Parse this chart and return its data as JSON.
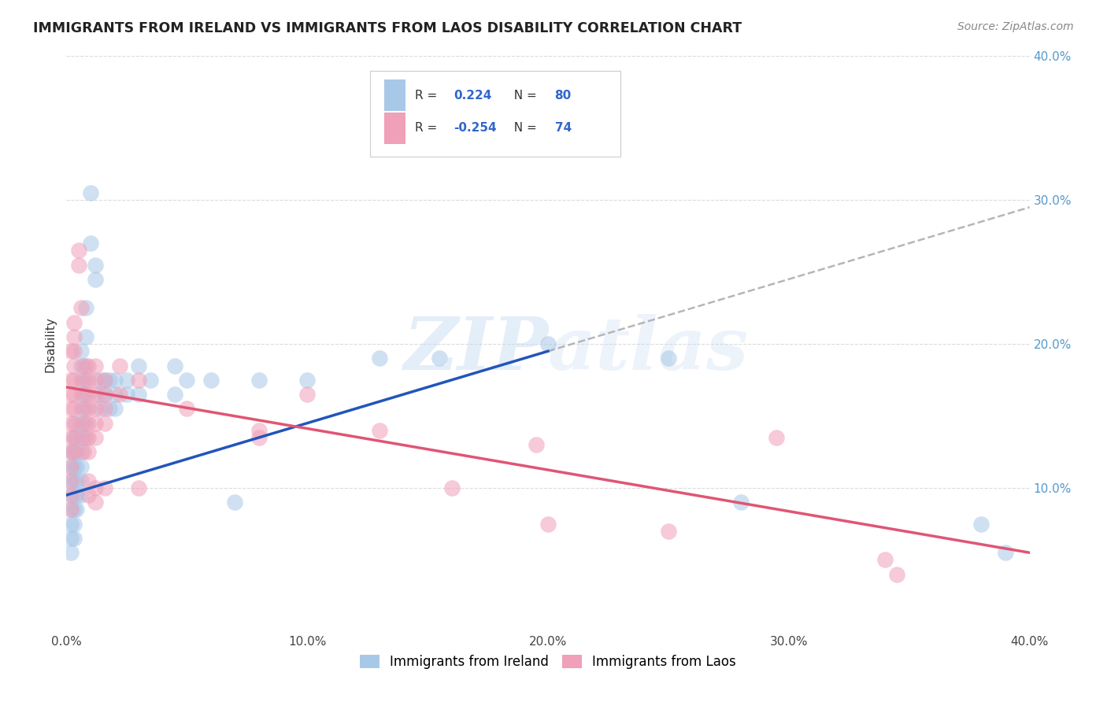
{
  "title": "IMMIGRANTS FROM IRELAND VS IMMIGRANTS FROM LAOS DISABILITY CORRELATION CHART",
  "source": "Source: ZipAtlas.com",
  "ylabel": "Disability",
  "xlim": [
    0.0,
    0.4
  ],
  "ylim": [
    0.0,
    0.4
  ],
  "xticks": [
    0.0,
    0.1,
    0.2,
    0.3,
    0.4
  ],
  "yticks": [
    0.1,
    0.2,
    0.3,
    0.4
  ],
  "xtick_labels": [
    "0.0%",
    "10.0%",
    "20.0%",
    "30.0%",
    "40.0%"
  ],
  "right_ytick_labels": [
    "10.0%",
    "20.0%",
    "30.0%",
    "40.0%"
  ],
  "ireland_color": "#a8c8e8",
  "laos_color": "#f0a0b8",
  "ireland_line_color": "#2255bb",
  "laos_line_color": "#e05575",
  "ireland_R": 0.224,
  "ireland_N": 80,
  "laos_R": -0.254,
  "laos_N": 74,
  "legend_ireland": "Immigrants from Ireland",
  "legend_laos": "Immigrants from Laos",
  "background_color": "#ffffff",
  "grid_color": "#cccccc",
  "watermark_zip": "ZIP",
  "watermark_atlas": "atlas",
  "right_tick_color": "#5599cc",
  "ireland_scatter": [
    [
      0.002,
      0.125
    ],
    [
      0.002,
      0.115
    ],
    [
      0.002,
      0.105
    ],
    [
      0.002,
      0.095
    ],
    [
      0.002,
      0.085
    ],
    [
      0.002,
      0.075
    ],
    [
      0.002,
      0.065
    ],
    [
      0.002,
      0.055
    ],
    [
      0.003,
      0.135
    ],
    [
      0.003,
      0.125
    ],
    [
      0.003,
      0.115
    ],
    [
      0.003,
      0.105
    ],
    [
      0.003,
      0.095
    ],
    [
      0.003,
      0.085
    ],
    [
      0.003,
      0.075
    ],
    [
      0.003,
      0.065
    ],
    [
      0.004,
      0.145
    ],
    [
      0.004,
      0.135
    ],
    [
      0.004,
      0.125
    ],
    [
      0.004,
      0.115
    ],
    [
      0.004,
      0.105
    ],
    [
      0.004,
      0.095
    ],
    [
      0.004,
      0.085
    ],
    [
      0.006,
      0.195
    ],
    [
      0.006,
      0.185
    ],
    [
      0.006,
      0.175
    ],
    [
      0.006,
      0.165
    ],
    [
      0.006,
      0.155
    ],
    [
      0.006,
      0.145
    ],
    [
      0.006,
      0.135
    ],
    [
      0.006,
      0.125
    ],
    [
      0.006,
      0.115
    ],
    [
      0.006,
      0.105
    ],
    [
      0.006,
      0.095
    ],
    [
      0.008,
      0.225
    ],
    [
      0.008,
      0.205
    ],
    [
      0.008,
      0.185
    ],
    [
      0.008,
      0.175
    ],
    [
      0.008,
      0.165
    ],
    [
      0.008,
      0.155
    ],
    [
      0.008,
      0.145
    ],
    [
      0.008,
      0.135
    ],
    [
      0.01,
      0.305
    ],
    [
      0.01,
      0.27
    ],
    [
      0.012,
      0.255
    ],
    [
      0.012,
      0.245
    ],
    [
      0.014,
      0.175
    ],
    [
      0.014,
      0.165
    ],
    [
      0.014,
      0.155
    ],
    [
      0.016,
      0.175
    ],
    [
      0.016,
      0.165
    ],
    [
      0.018,
      0.175
    ],
    [
      0.018,
      0.155
    ],
    [
      0.02,
      0.175
    ],
    [
      0.02,
      0.165
    ],
    [
      0.02,
      0.155
    ],
    [
      0.025,
      0.175
    ],
    [
      0.025,
      0.165
    ],
    [
      0.03,
      0.185
    ],
    [
      0.03,
      0.165
    ],
    [
      0.035,
      0.175
    ],
    [
      0.045,
      0.185
    ],
    [
      0.045,
      0.165
    ],
    [
      0.05,
      0.175
    ],
    [
      0.06,
      0.175
    ],
    [
      0.07,
      0.09
    ],
    [
      0.08,
      0.175
    ],
    [
      0.1,
      0.175
    ],
    [
      0.13,
      0.19
    ],
    [
      0.155,
      0.19
    ],
    [
      0.2,
      0.2
    ],
    [
      0.25,
      0.19
    ],
    [
      0.28,
      0.09
    ],
    [
      0.38,
      0.075
    ],
    [
      0.39,
      0.055
    ]
  ],
  "laos_scatter": [
    [
      0.002,
      0.195
    ],
    [
      0.002,
      0.175
    ],
    [
      0.002,
      0.165
    ],
    [
      0.002,
      0.155
    ],
    [
      0.002,
      0.145
    ],
    [
      0.002,
      0.135
    ],
    [
      0.002,
      0.125
    ],
    [
      0.002,
      0.115
    ],
    [
      0.002,
      0.105
    ],
    [
      0.002,
      0.095
    ],
    [
      0.002,
      0.085
    ],
    [
      0.003,
      0.215
    ],
    [
      0.003,
      0.205
    ],
    [
      0.003,
      0.195
    ],
    [
      0.003,
      0.185
    ],
    [
      0.003,
      0.175
    ],
    [
      0.003,
      0.165
    ],
    [
      0.003,
      0.155
    ],
    [
      0.003,
      0.145
    ],
    [
      0.003,
      0.135
    ],
    [
      0.003,
      0.125
    ],
    [
      0.005,
      0.265
    ],
    [
      0.005,
      0.255
    ],
    [
      0.006,
      0.225
    ],
    [
      0.007,
      0.185
    ],
    [
      0.007,
      0.175
    ],
    [
      0.007,
      0.165
    ],
    [
      0.007,
      0.155
    ],
    [
      0.007,
      0.145
    ],
    [
      0.007,
      0.135
    ],
    [
      0.007,
      0.125
    ],
    [
      0.009,
      0.185
    ],
    [
      0.009,
      0.175
    ],
    [
      0.009,
      0.165
    ],
    [
      0.009,
      0.155
    ],
    [
      0.009,
      0.145
    ],
    [
      0.009,
      0.135
    ],
    [
      0.009,
      0.125
    ],
    [
      0.009,
      0.105
    ],
    [
      0.009,
      0.095
    ],
    [
      0.012,
      0.185
    ],
    [
      0.012,
      0.175
    ],
    [
      0.012,
      0.165
    ],
    [
      0.012,
      0.155
    ],
    [
      0.012,
      0.145
    ],
    [
      0.012,
      0.135
    ],
    [
      0.012,
      0.1
    ],
    [
      0.012,
      0.09
    ],
    [
      0.016,
      0.175
    ],
    [
      0.016,
      0.165
    ],
    [
      0.016,
      0.155
    ],
    [
      0.016,
      0.145
    ],
    [
      0.016,
      0.1
    ],
    [
      0.022,
      0.185
    ],
    [
      0.022,
      0.165
    ],
    [
      0.03,
      0.175
    ],
    [
      0.03,
      0.1
    ],
    [
      0.05,
      0.155
    ],
    [
      0.08,
      0.14
    ],
    [
      0.08,
      0.135
    ],
    [
      0.1,
      0.165
    ],
    [
      0.13,
      0.14
    ],
    [
      0.16,
      0.1
    ],
    [
      0.195,
      0.13
    ],
    [
      0.2,
      0.075
    ],
    [
      0.25,
      0.07
    ],
    [
      0.295,
      0.135
    ],
    [
      0.34,
      0.05
    ],
    [
      0.345,
      0.04
    ]
  ],
  "ireland_line": [
    [
      0.0,
      0.095
    ],
    [
      0.2,
      0.195
    ]
  ],
  "laos_line": [
    [
      0.0,
      0.17
    ],
    [
      0.4,
      0.055
    ]
  ],
  "dashed_line": [
    [
      0.2,
      0.195
    ],
    [
      0.4,
      0.295
    ]
  ]
}
